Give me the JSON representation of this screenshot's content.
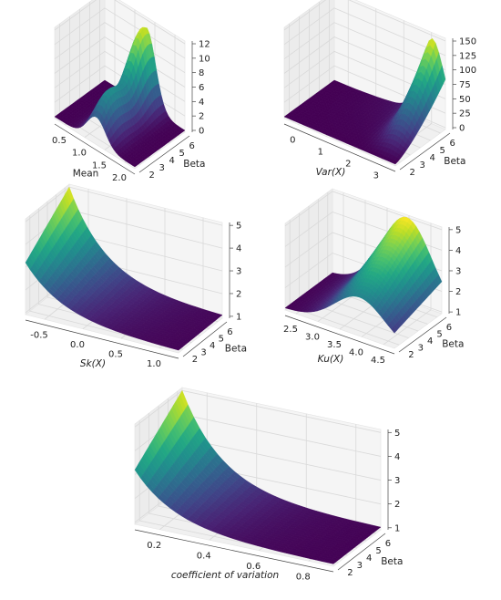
{
  "chart_data": [
    {
      "type": "surface",
      "xlabel": "Mean",
      "ylabel": "Beta",
      "x_ticks": [
        "0.5",
        "1.0",
        "1.5",
        "2.0"
      ],
      "y_ticks": [
        "2",
        "3",
        "4",
        "5",
        "6"
      ],
      "z_ticks": [
        "0",
        "2",
        "4",
        "6",
        "8",
        "10",
        "12"
      ],
      "xlim": [
        0.2,
        2.1
      ],
      "ylim": [
        1.5,
        6.5
      ],
      "zlim": [
        0,
        12
      ],
      "colormap": "viridis",
      "z_range": [
        0,
        12
      ],
      "shape": "peak in the middle of the x range (x≈1.2), rising with Beta"
    },
    {
      "type": "surface",
      "xlabel": "Var(X)",
      "ylabel": "Beta",
      "x_ticks": [
        "0",
        "1",
        "2",
        "3"
      ],
      "y_ticks": [
        "2",
        "3",
        "4",
        "5",
        "6"
      ],
      "z_ticks": [
        "0",
        "25",
        "50",
        "75",
        "100",
        "125",
        "150"
      ],
      "xlim": [
        -0.1,
        3.6
      ],
      "ylim": [
        1.5,
        6.5
      ],
      "zlim": [
        0,
        150
      ],
      "colormap": "viridis",
      "z_range": [
        0,
        150
      ],
      "shape": "sharp peak at x≈3.2, high Beta"
    },
    {
      "type": "surface",
      "xlabel": "Sk(X)",
      "ylabel": "Beta",
      "x_ticks": [
        "-0.5",
        "0.0",
        "0.5",
        "1.0"
      ],
      "y_ticks": [
        "2",
        "3",
        "4",
        "5",
        "6"
      ],
      "z_ticks": [
        "1",
        "2",
        "3",
        "4",
        "5"
      ],
      "xlim": [
        -0.95,
        1.3
      ],
      "ylim": [
        1.5,
        6.5
      ],
      "zlim": [
        0.8,
        5.4
      ],
      "colormap": "viridis",
      "z_range": [
        1,
        5.3
      ],
      "shape": "decays from high at negative skew to flat near 1"
    },
    {
      "type": "surface",
      "xlabel": "Ku(X)",
      "ylabel": "Beta",
      "x_ticks": [
        "2.5",
        "3.0",
        "3.5",
        "4.0",
        "4.5"
      ],
      "y_ticks": [
        "2",
        "3",
        "4",
        "5",
        "6"
      ],
      "z_ticks": [
        "1",
        "2",
        "3",
        "4",
        "5"
      ],
      "xlim": [
        2.2,
        4.8
      ],
      "ylim": [
        1.5,
        6.5
      ],
      "zlim": [
        0.8,
        5.4
      ],
      "colormap": "viridis",
      "z_range": [
        1,
        5.3
      ],
      "shape": "ridge peaking near x≈4.0"
    },
    {
      "type": "surface",
      "xlabel": "coefficient of variation",
      "ylabel": "Beta",
      "x_ticks": [
        "0.2",
        "0.4",
        "0.6",
        "0.8"
      ],
      "y_ticks": [
        "2",
        "3",
        "4",
        "5",
        "6"
      ],
      "z_ticks": [
        "1",
        "2",
        "3",
        "4",
        "5"
      ],
      "xlim": [
        0.1,
        1.0
      ],
      "ylim": [
        1.5,
        6.5
      ],
      "zlim": [
        0.8,
        5.4
      ],
      "colormap": "viridis",
      "z_range": [
        1,
        5.3
      ],
      "shape": "decays from high at small CV to flat near 1"
    }
  ]
}
